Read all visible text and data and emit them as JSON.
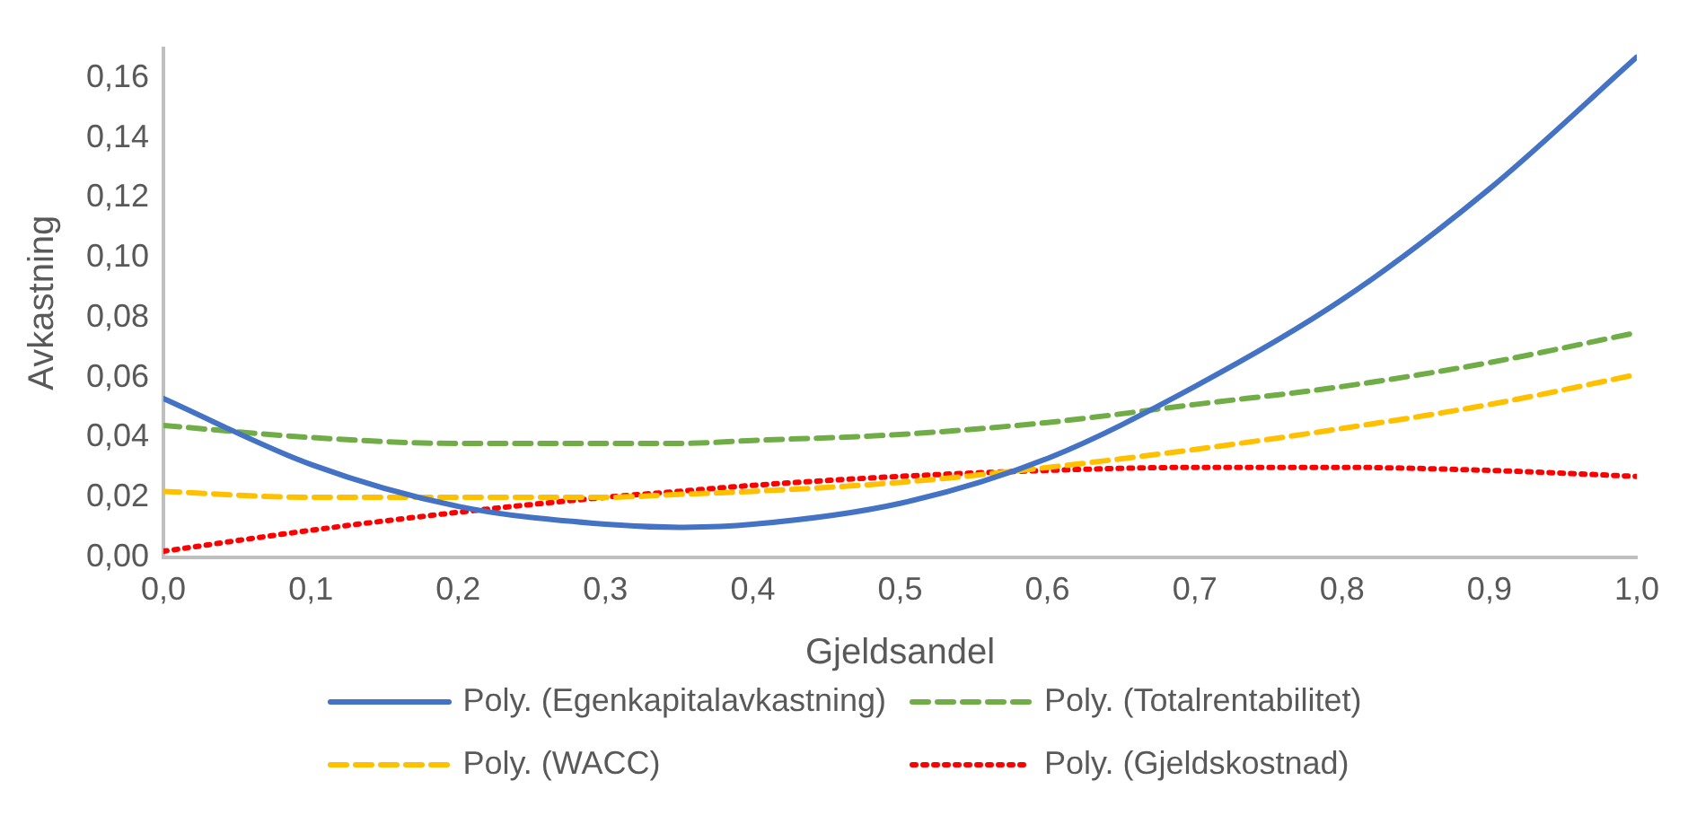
{
  "chart_data": {
    "type": "line",
    "xlabel": "Gjeldsandel",
    "ylabel": "Avkastning",
    "x": [
      0,
      0.1,
      0.2,
      0.3,
      0.35,
      0.4,
      0.5,
      0.6,
      0.7,
      0.8,
      0.9,
      1.0
    ],
    "series": [
      {
        "name": "Poly. (Egenkapitalavkastning)",
        "color": "#4472c4",
        "line_style": "solid",
        "values": [
          0.053,
          0.031,
          0.017,
          0.011,
          0.01,
          0.011,
          0.018,
          0.033,
          0.057,
          0.086,
          0.123,
          0.167
        ]
      },
      {
        "name": "Poly. (Totalrentabilitet)",
        "color": "#70ad47",
        "line_style": "dashed",
        "values": [
          0.044,
          0.04,
          0.038,
          0.038,
          0.038,
          0.039,
          0.041,
          0.045,
          0.051,
          0.057,
          0.065,
          0.075
        ]
      },
      {
        "name": "Poly. (WACC)",
        "color": "#ffc000",
        "line_style": "dashed",
        "values": [
          0.022,
          0.02,
          0.02,
          0.02,
          0.021,
          0.022,
          0.025,
          0.03,
          0.036,
          0.043,
          0.051,
          0.061
        ]
      },
      {
        "name": "Poly. (Gjeldskostnad)",
        "color": "#ff0000",
        "line_style": "dotted",
        "values": [
          0.002,
          0.009,
          0.015,
          0.02,
          0.022,
          0.024,
          0.027,
          0.029,
          0.03,
          0.03,
          0.029,
          0.027
        ]
      }
    ],
    "xlim": [
      0,
      1.0
    ],
    "xticks": [
      {
        "value": 0,
        "label": "0,0"
      },
      {
        "value": 0.1,
        "label": "0,1"
      },
      {
        "value": 0.2,
        "label": "0,2"
      },
      {
        "value": 0.3,
        "label": "0,3"
      },
      {
        "value": 0.4,
        "label": "0,4"
      },
      {
        "value": 0.5,
        "label": "0,5"
      },
      {
        "value": 0.6,
        "label": "0,6"
      },
      {
        "value": 0.7,
        "label": "0,7"
      },
      {
        "value": 0.8,
        "label": "0,8"
      },
      {
        "value": 0.9,
        "label": "0,9"
      },
      {
        "value": 1.0,
        "label": "1,0"
      }
    ],
    "ylim": [
      0,
      0.17
    ],
    "yticks": [
      {
        "value": 0,
        "label": "0,00"
      },
      {
        "value": 0.02,
        "label": "0,02"
      },
      {
        "value": 0.04,
        "label": "0,04"
      },
      {
        "value": 0.06,
        "label": "0,06"
      },
      {
        "value": 0.08,
        "label": "0,08"
      },
      {
        "value": 0.1,
        "label": "0,10"
      },
      {
        "value": 0.12,
        "label": "0,12"
      },
      {
        "value": 0.14,
        "label": "0,14"
      },
      {
        "value": 0.16,
        "label": "0,16"
      }
    ],
    "grid": false,
    "legend": "bottom",
    "marker": "none"
  }
}
